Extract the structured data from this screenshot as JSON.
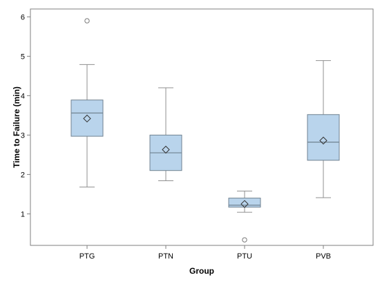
{
  "chart_data": {
    "type": "box",
    "title": "",
    "xlabel": "Group",
    "ylabel": "Time to Failure (min)",
    "ylim": [
      0.2,
      6.2
    ],
    "yticks": [
      "1",
      "2",
      "3",
      "4",
      "5",
      "6"
    ],
    "categories": [
      "PTG",
      "PTN",
      "PTU",
      "PVB"
    ],
    "boxes": [
      {
        "category": "PTG",
        "whisker_low": 1.68,
        "q1": 2.97,
        "median": 3.56,
        "q3": 3.89,
        "whisker_high": 4.79,
        "mean": 3.42,
        "outliers": [
          5.9
        ]
      },
      {
        "category": "PTN",
        "whisker_low": 1.84,
        "q1": 2.1,
        "median": 2.55,
        "q3": 3.0,
        "whisker_high": 4.2,
        "mean": 2.63,
        "outliers": []
      },
      {
        "category": "PTU",
        "whisker_low": 1.04,
        "q1": 1.17,
        "median": 1.22,
        "q3": 1.4,
        "whisker_high": 1.58,
        "mean": 1.25,
        "outliers": [
          0.34
        ]
      },
      {
        "category": "PVB",
        "whisker_low": 1.41,
        "q1": 2.36,
        "median": 2.82,
        "q3": 3.52,
        "whisker_high": 4.89,
        "mean": 2.86,
        "outliers": []
      }
    ],
    "grid": false,
    "legend": "none",
    "colors": {
      "box_fill": "#b9d4ec",
      "box_stroke": "#6f8190",
      "whisker": "#8f8f8f",
      "mean_marker": "#333333",
      "outlier": "#7a7a7a",
      "frame": "#7f7f7f"
    }
  }
}
